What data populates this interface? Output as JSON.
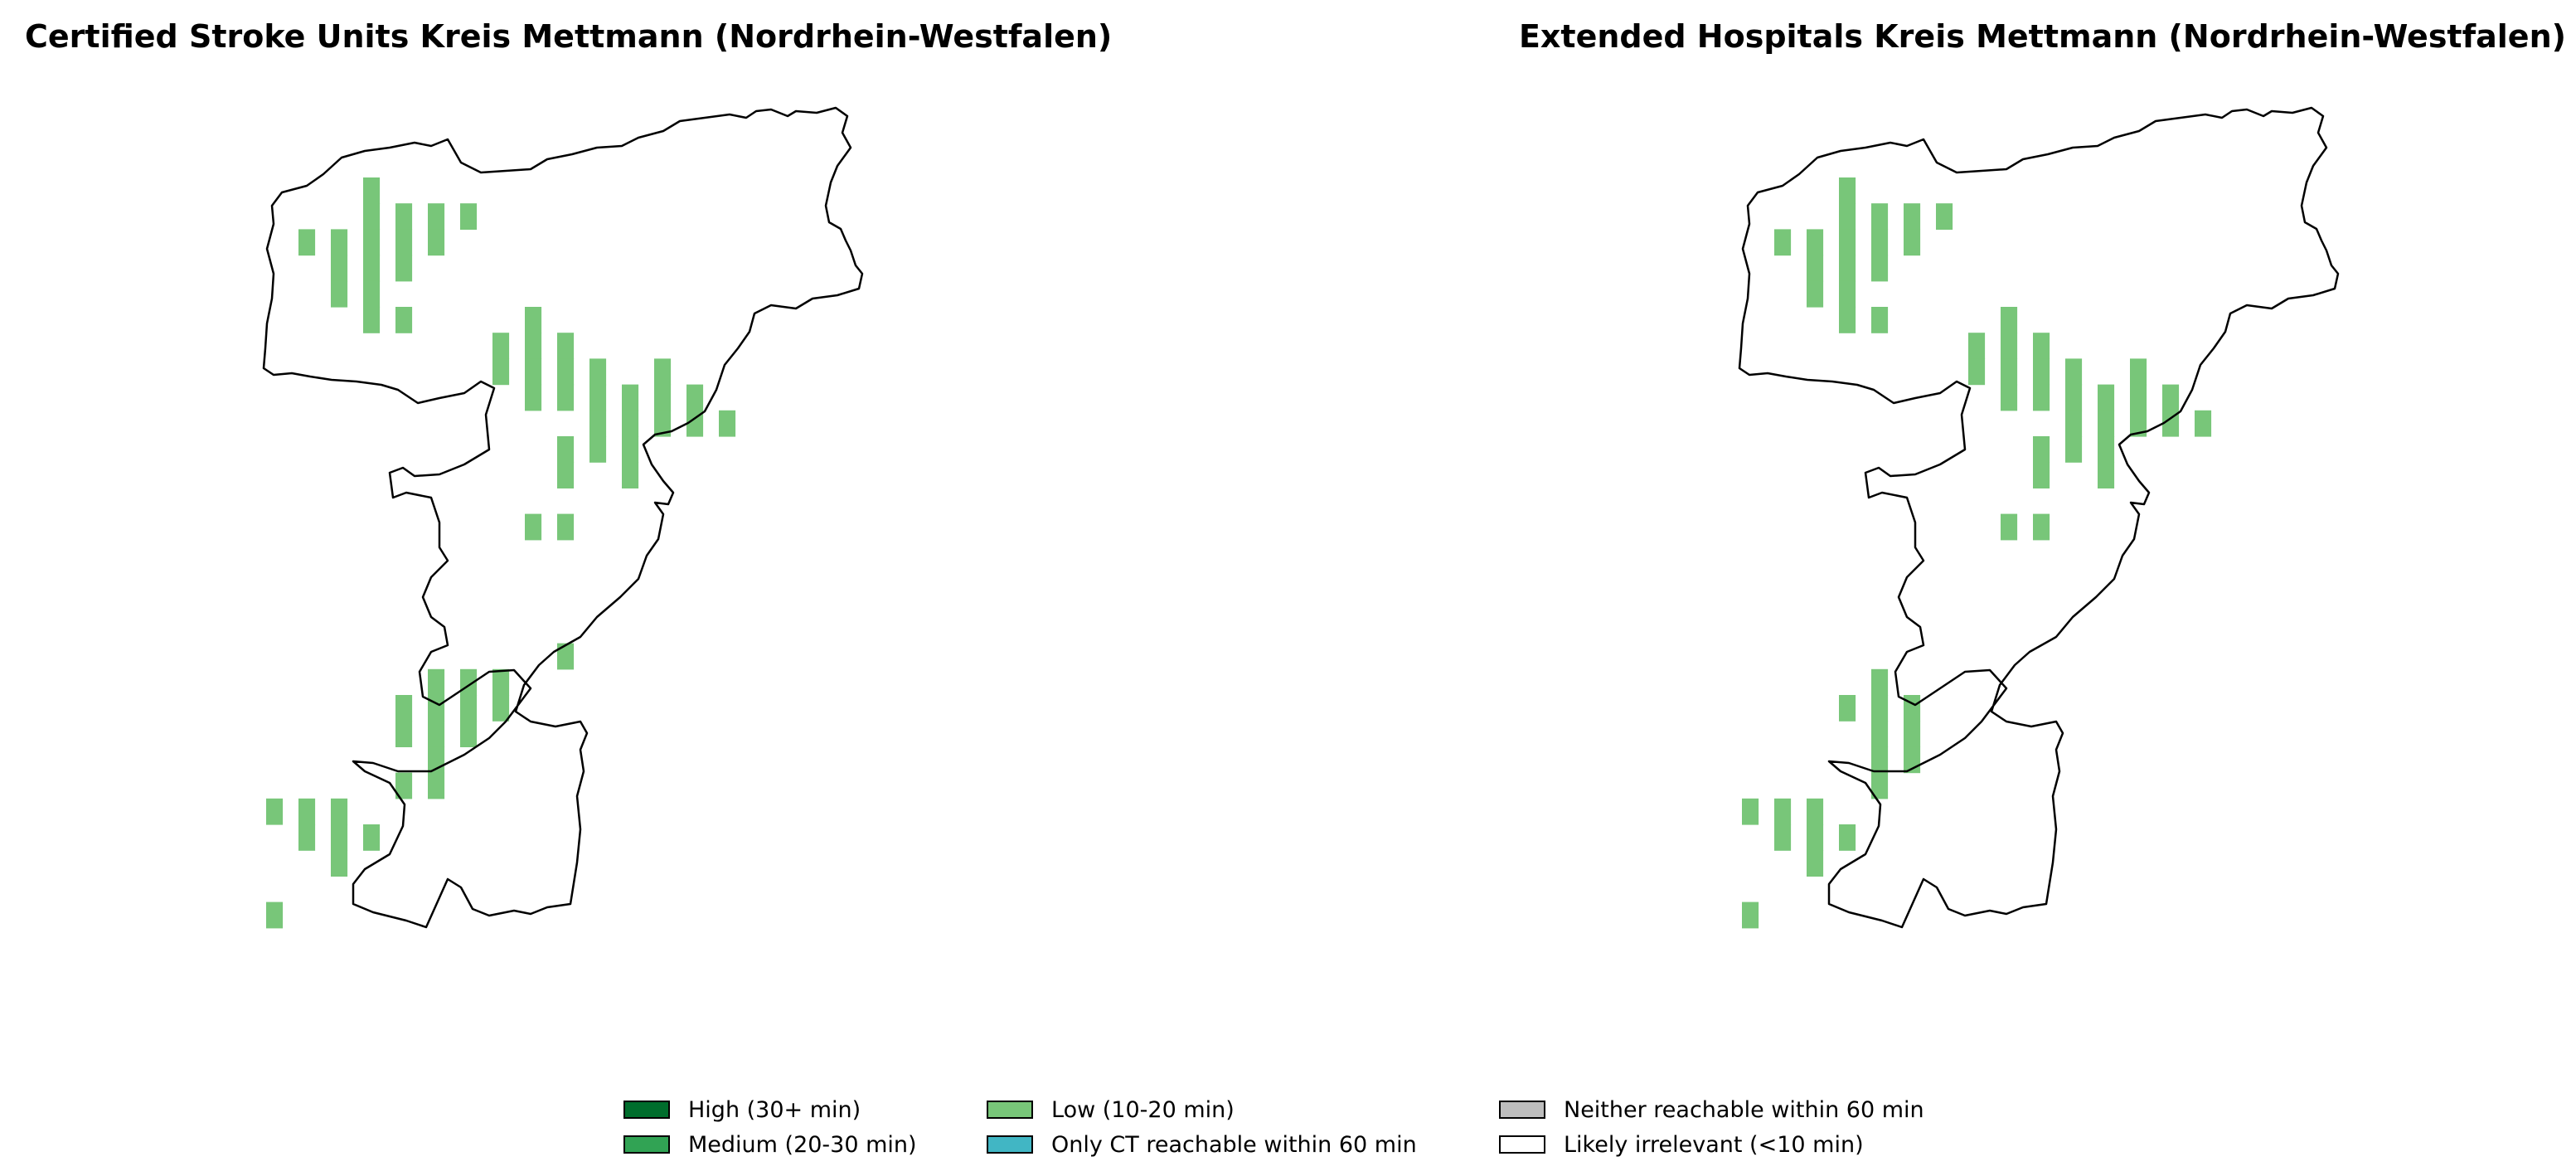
{
  "maps": [
    {
      "title": "Certified Stroke Units Kreis Mettmann (Nordrhein-Westfalen)",
      "region": "Kreis Mettmann",
      "cells": [
        [
          10,
          0
        ],
        [
          10,
          1
        ],
        [
          11,
          1
        ],
        [
          12,
          1
        ],
        [
          13,
          1
        ],
        [
          8,
          2
        ],
        [
          9,
          2
        ],
        [
          10,
          2
        ],
        [
          11,
          2
        ],
        [
          12,
          2
        ],
        [
          9,
          3
        ],
        [
          10,
          3
        ],
        [
          11,
          3
        ],
        [
          9,
          4
        ],
        [
          10,
          4
        ],
        [
          10,
          5
        ],
        [
          11,
          5
        ],
        [
          15,
          5
        ],
        [
          14,
          6
        ],
        [
          15,
          6
        ],
        [
          16,
          6
        ],
        [
          14,
          7
        ],
        [
          15,
          7
        ],
        [
          16,
          7
        ],
        [
          17,
          7
        ],
        [
          19,
          7
        ],
        [
          15,
          8
        ],
        [
          16,
          8
        ],
        [
          17,
          8
        ],
        [
          18,
          8
        ],
        [
          19,
          8
        ],
        [
          20,
          8
        ],
        [
          17,
          9
        ],
        [
          18,
          9
        ],
        [
          19,
          9
        ],
        [
          20,
          9
        ],
        [
          21,
          9
        ],
        [
          21,
          9
        ],
        [
          16,
          10
        ],
        [
          17,
          10
        ],
        [
          18,
          10
        ],
        [
          16,
          11
        ],
        [
          18,
          11
        ],
        [
          15,
          13
        ],
        [
          16,
          13
        ],
        [
          16,
          18
        ],
        [
          12,
          19
        ],
        [
          13,
          19
        ],
        [
          14,
          19
        ],
        [
          11,
          20
        ],
        [
          12,
          20
        ],
        [
          13,
          20
        ],
        [
          14,
          20
        ],
        [
          11,
          21
        ],
        [
          12,
          21
        ],
        [
          13,
          21
        ],
        [
          12,
          22
        ],
        [
          11,
          23
        ],
        [
          12,
          23
        ],
        [
          7,
          24
        ],
        [
          8,
          24
        ],
        [
          9,
          24
        ],
        [
          8,
          25
        ],
        [
          9,
          25
        ],
        [
          10,
          25
        ],
        [
          9,
          26
        ],
        [
          7,
          28
        ]
      ]
    },
    {
      "title": "Extended Hospitals Kreis Mettmann (Nordrhein-Westfalen)",
      "region": "Kreis Mettmann",
      "cells": [
        [
          10,
          0
        ],
        [
          10,
          1
        ],
        [
          11,
          1
        ],
        [
          12,
          1
        ],
        [
          13,
          1
        ],
        [
          8,
          2
        ],
        [
          9,
          2
        ],
        [
          10,
          2
        ],
        [
          11,
          2
        ],
        [
          12,
          2
        ],
        [
          9,
          3
        ],
        [
          10,
          3
        ],
        [
          11,
          3
        ],
        [
          9,
          4
        ],
        [
          10,
          4
        ],
        [
          10,
          5
        ],
        [
          11,
          5
        ],
        [
          15,
          5
        ],
        [
          14,
          6
        ],
        [
          15,
          6
        ],
        [
          16,
          6
        ],
        [
          14,
          7
        ],
        [
          15,
          7
        ],
        [
          16,
          7
        ],
        [
          17,
          7
        ],
        [
          19,
          7
        ],
        [
          15,
          8
        ],
        [
          16,
          8
        ],
        [
          17,
          8
        ],
        [
          18,
          8
        ],
        [
          19,
          8
        ],
        [
          20,
          8
        ],
        [
          17,
          9
        ],
        [
          18,
          9
        ],
        [
          19,
          9
        ],
        [
          20,
          9
        ],
        [
          21,
          9
        ],
        [
          16,
          10
        ],
        [
          17,
          10
        ],
        [
          18,
          10
        ],
        [
          16,
          11
        ],
        [
          18,
          11
        ],
        [
          15,
          13
        ],
        [
          16,
          13
        ],
        [
          11,
          19
        ],
        [
          10,
          20
        ],
        [
          11,
          20
        ],
        [
          12,
          20
        ],
        [
          11,
          21
        ],
        [
          12,
          21
        ],
        [
          11,
          22
        ],
        [
          12,
          22
        ],
        [
          11,
          23
        ],
        [
          7,
          24
        ],
        [
          8,
          24
        ],
        [
          9,
          24
        ],
        [
          8,
          25
        ],
        [
          9,
          25
        ],
        [
          10,
          25
        ],
        [
          9,
          26
        ],
        [
          7,
          28
        ]
      ]
    }
  ],
  "legend": {
    "items": [
      {
        "label": "High (30+ min)",
        "color": "#006d2c"
      },
      {
        "label": "Medium (20-30 min)",
        "color": "#31a354"
      },
      {
        "label": "Low (10-20 min)",
        "color": "#78c679"
      },
      {
        "label": "Only CT reachable within 60 min",
        "color": "#41b6c4"
      },
      {
        "label": "Neither reachable within 60 min",
        "color": "#bdbdbd"
      },
      {
        "label": "Likely irrelevant (<10 min)",
        "color": "#ffffff"
      }
    ]
  },
  "cell_color": "#78c679"
}
